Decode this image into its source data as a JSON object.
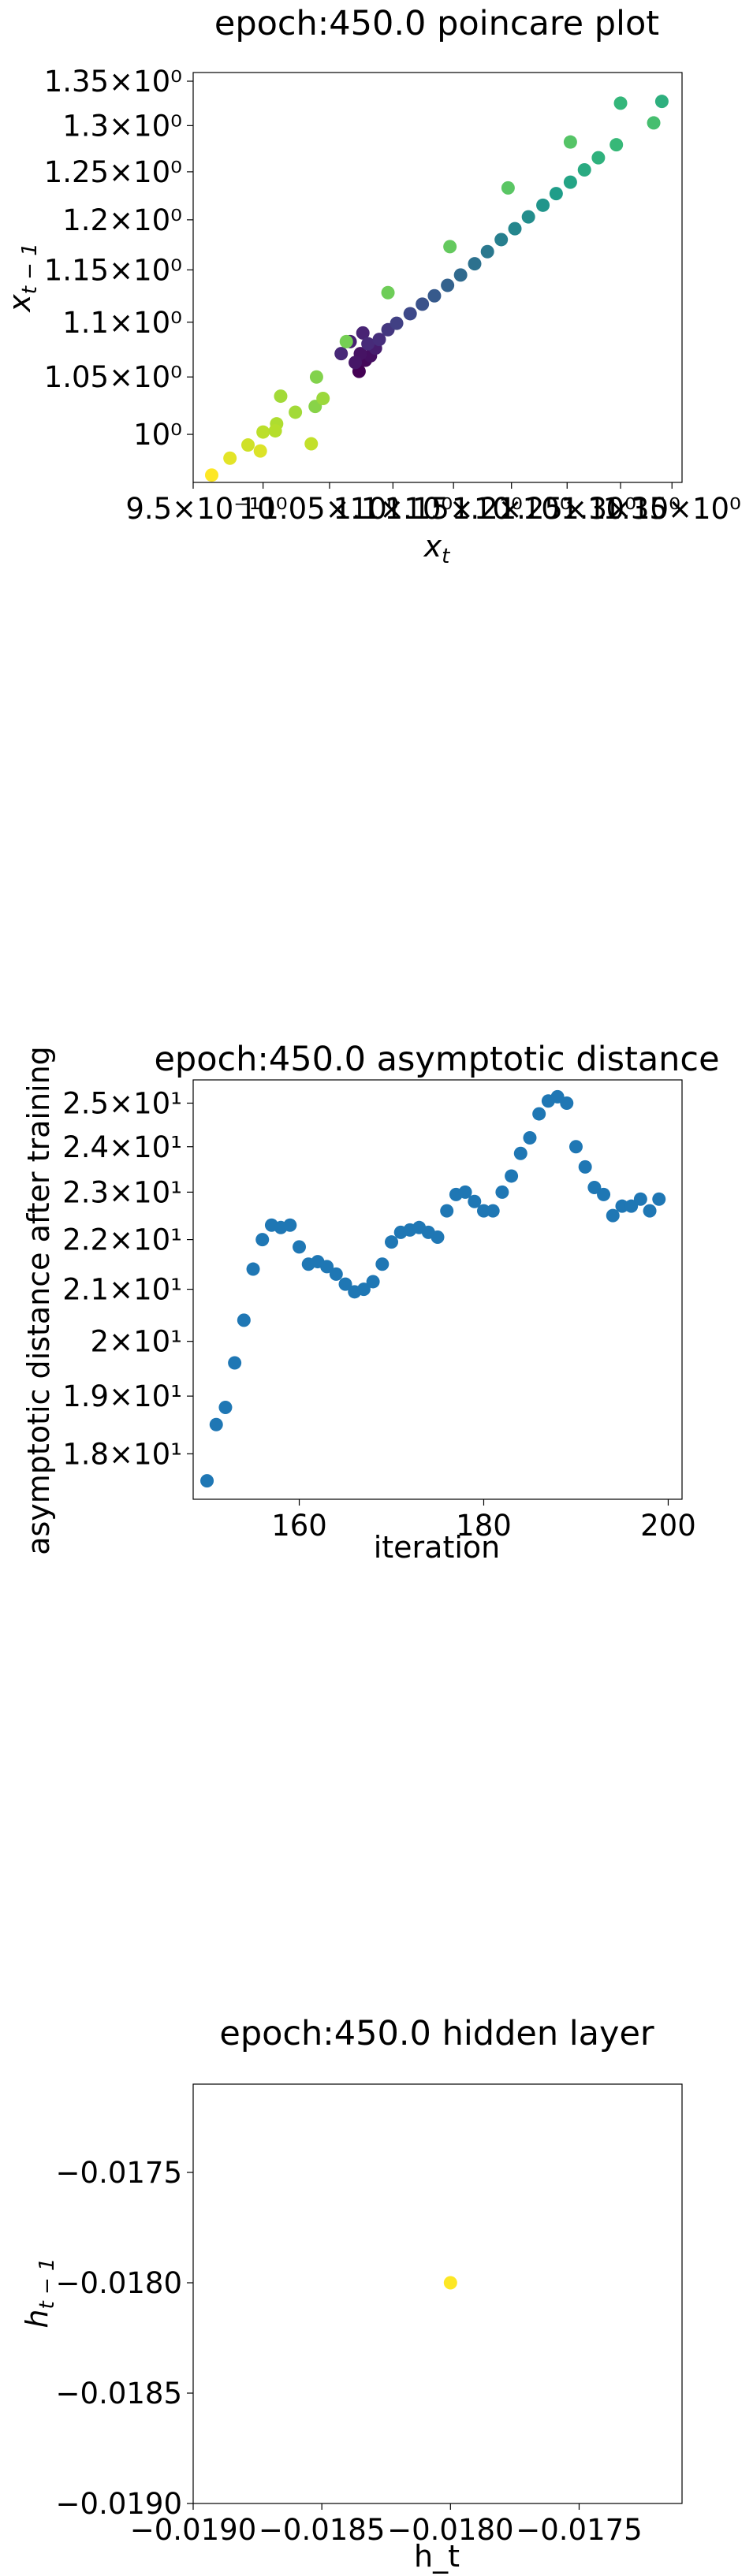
{
  "chart_data": [
    {
      "type": "scatter",
      "title": "epoch:450.0 poincare plot",
      "xlabel": "x_t",
      "ylabel": "x_{t-1}",
      "xscale": "log",
      "yscale": "log",
      "xlim": [
        0.95,
        1.36
      ],
      "ylim": [
        0.96,
        1.36
      ],
      "xticks": [
        {
          "v": 0.95,
          "label": "9.5×10⁻¹"
        },
        {
          "v": 1.0,
          "label": "10⁰"
        },
        {
          "v": 1.05,
          "label": "1.05×10⁰"
        },
        {
          "v": 1.1,
          "label": "1.1×10⁰"
        },
        {
          "v": 1.15,
          "label": "1.15×10⁰"
        },
        {
          "v": 1.2,
          "label": "1.2×10⁰"
        },
        {
          "v": 1.25,
          "label": "1.25×10⁰"
        },
        {
          "v": 1.3,
          "label": "1.3×10⁰"
        },
        {
          "v": 1.35,
          "label": "1.35×10⁰"
        }
      ],
      "yticks": [
        {
          "v": 1.0,
          "label": "10⁰"
        },
        {
          "v": 1.05,
          "label": "1.05×10⁰"
        },
        {
          "v": 1.1,
          "label": "1.1×10⁰"
        },
        {
          "v": 1.15,
          "label": "1.15×10⁰"
        },
        {
          "v": 1.2,
          "label": "1.2×10⁰"
        },
        {
          "v": 1.25,
          "label": "1.25×10⁰"
        },
        {
          "v": 1.3,
          "label": "1.3×10⁰"
        },
        {
          "v": 1.35,
          "label": "1.35×10⁰"
        }
      ],
      "colormap": "viridis",
      "points": [
        {
          "x": 1.073,
          "y": 1.055,
          "c": 0.0
        },
        {
          "x": 1.078,
          "y": 1.065,
          "c": 0.02
        },
        {
          "x": 1.082,
          "y": 1.069,
          "c": 0.04
        },
        {
          "x": 1.074,
          "y": 1.071,
          "c": 0.05
        },
        {
          "x": 1.07,
          "y": 1.063,
          "c": 0.06
        },
        {
          "x": 1.086,
          "y": 1.076,
          "c": 0.08
        },
        {
          "x": 1.066,
          "y": 1.082,
          "c": 0.09
        },
        {
          "x": 1.076,
          "y": 1.09,
          "c": 0.1
        },
        {
          "x": 1.059,
          "y": 1.071,
          "c": 0.11
        },
        {
          "x": 1.08,
          "y": 1.08,
          "c": 0.12
        },
        {
          "x": 1.089,
          "y": 1.084,
          "c": 0.13
        },
        {
          "x": 1.096,
          "y": 1.093,
          "c": 0.16
        },
        {
          "x": 1.103,
          "y": 1.099,
          "c": 0.19
        },
        {
          "x": 1.114,
          "y": 1.108,
          "c": 0.22
        },
        {
          "x": 1.124,
          "y": 1.117,
          "c": 0.25
        },
        {
          "x": 1.134,
          "y": 1.125,
          "c": 0.28
        },
        {
          "x": 1.145,
          "y": 1.135,
          "c": 0.31
        },
        {
          "x": 1.156,
          "y": 1.145,
          "c": 0.34
        },
        {
          "x": 1.168,
          "y": 1.156,
          "c": 0.37
        },
        {
          "x": 1.179,
          "y": 1.168,
          "c": 0.4
        },
        {
          "x": 1.191,
          "y": 1.18,
          "c": 0.43
        },
        {
          "x": 1.203,
          "y": 1.191,
          "c": 0.46
        },
        {
          "x": 1.215,
          "y": 1.203,
          "c": 0.49
        },
        {
          "x": 1.228,
          "y": 1.215,
          "c": 0.52
        },
        {
          "x": 1.24,
          "y": 1.227,
          "c": 0.55
        },
        {
          "x": 1.253,
          "y": 1.239,
          "c": 0.58
        },
        {
          "x": 1.266,
          "y": 1.252,
          "c": 0.61
        },
        {
          "x": 1.279,
          "y": 1.265,
          "c": 0.64
        },
        {
          "x": 1.296,
          "y": 1.279,
          "c": 0.67
        },
        {
          "x": 1.332,
          "y": 1.303,
          "c": 0.7
        },
        {
          "x": 1.34,
          "y": 1.327,
          "c": 0.63
        },
        {
          "x": 1.3,
          "y": 1.325,
          "c": 0.66
        },
        {
          "x": 1.253,
          "y": 1.282,
          "c": 0.73
        },
        {
          "x": 1.197,
          "y": 1.233,
          "c": 0.74
        },
        {
          "x": 1.147,
          "y": 1.173,
          "c": 0.76
        },
        {
          "x": 1.096,
          "y": 1.128,
          "c": 0.78
        },
        {
          "x": 1.063,
          "y": 1.082,
          "c": 0.79
        },
        {
          "x": 1.04,
          "y": 1.05,
          "c": 0.81
        },
        {
          "x": 1.024,
          "y": 1.019,
          "c": 0.86
        },
        {
          "x": 1.01,
          "y": 1.009,
          "c": 0.88
        },
        {
          "x": 1.0,
          "y": 1.002,
          "c": 0.9
        },
        {
          "x": 0.989,
          "y": 0.991,
          "c": 0.93
        },
        {
          "x": 0.976,
          "y": 0.98,
          "c": 0.96
        },
        {
          "x": 0.963,
          "y": 0.966,
          "c": 1.0
        },
        {
          "x": 1.039,
          "y": 1.024,
          "c": 0.82
        },
        {
          "x": 1.045,
          "y": 1.031,
          "c": 0.85
        },
        {
          "x": 1.013,
          "y": 1.033,
          "c": 0.86
        },
        {
          "x": 1.009,
          "y": 1.003,
          "c": 0.89
        },
        {
          "x": 1.036,
          "y": 0.992,
          "c": 0.91
        },
        {
          "x": 0.998,
          "y": 0.986,
          "c": 0.95
        }
      ]
    },
    {
      "type": "scatter",
      "title": "epoch:450.0 asymptotic distance",
      "xlabel": "iteration",
      "ylabel": "asymptotic distance after training",
      "yscale": "log",
      "xlim": [
        148.5,
        201.5
      ],
      "ylim": [
        17.25,
        25.55
      ],
      "xticks": [
        {
          "v": 160,
          "label": "160"
        },
        {
          "v": 180,
          "label": "180"
        },
        {
          "v": 200,
          "label": "200"
        }
      ],
      "yticks": [
        {
          "v": 18,
          "label": "1.8×10¹"
        },
        {
          "v": 19,
          "label": "1.9×10¹"
        },
        {
          "v": 20,
          "label": "2×10¹"
        },
        {
          "v": 21,
          "label": "2.1×10¹"
        },
        {
          "v": 22,
          "label": "2.2×10¹"
        },
        {
          "v": 23,
          "label": "2.3×10¹"
        },
        {
          "v": 24,
          "label": "2.4×10¹"
        },
        {
          "v": 25,
          "label": "2.5×10¹"
        }
      ],
      "color": "#1f77b4",
      "x": [
        150,
        151,
        152,
        153,
        154,
        155,
        156,
        157,
        158,
        159,
        160,
        161,
        162,
        163,
        164,
        165,
        166,
        167,
        168,
        169,
        170,
        171,
        172,
        173,
        174,
        175,
        176,
        177,
        178,
        179,
        180,
        181,
        182,
        183,
        184,
        185,
        186,
        187,
        188,
        189,
        190,
        191,
        192,
        193,
        194,
        195,
        196,
        197,
        198,
        199
      ],
      "y": [
        17.55,
        18.5,
        18.8,
        19.6,
        20.4,
        21.4,
        22.0,
        22.3,
        22.25,
        22.3,
        21.85,
        21.5,
        21.55,
        21.45,
        21.3,
        21.1,
        20.95,
        21.0,
        21.15,
        21.5,
        21.95,
        22.15,
        22.2,
        22.25,
        22.15,
        22.05,
        22.6,
        22.95,
        23.0,
        22.8,
        22.6,
        22.6,
        23.0,
        23.35,
        23.85,
        24.2,
        24.75,
        25.05,
        25.15,
        25.0,
        24.0,
        23.55,
        23.1,
        22.95,
        22.5,
        22.7,
        22.7,
        22.85,
        22.6,
        22.85
      ]
    },
    {
      "type": "scatter",
      "title": "epoch:450.0 hidden layer",
      "xlabel": "h_t",
      "ylabel": "h_{t-1}",
      "xlim": [
        -0.019,
        -0.0171
      ],
      "ylim": [
        -0.019,
        -0.0171
      ],
      "xticks": [
        {
          "v": -0.019,
          "label": "−0.0190"
        },
        {
          "v": -0.0185,
          "label": "−0.0185"
        },
        {
          "v": -0.018,
          "label": "−0.0180"
        },
        {
          "v": -0.0175,
          "label": "−0.0175"
        }
      ],
      "yticks": [
        {
          "v": -0.019,
          "label": "−0.0190"
        },
        {
          "v": -0.0185,
          "label": "−0.0185"
        },
        {
          "v": -0.018,
          "label": "−0.0180"
        },
        {
          "v": -0.0175,
          "label": "−0.0175"
        }
      ],
      "color": "#fde725",
      "x": [
        -0.018
      ],
      "y": [
        -0.018
      ]
    }
  ]
}
